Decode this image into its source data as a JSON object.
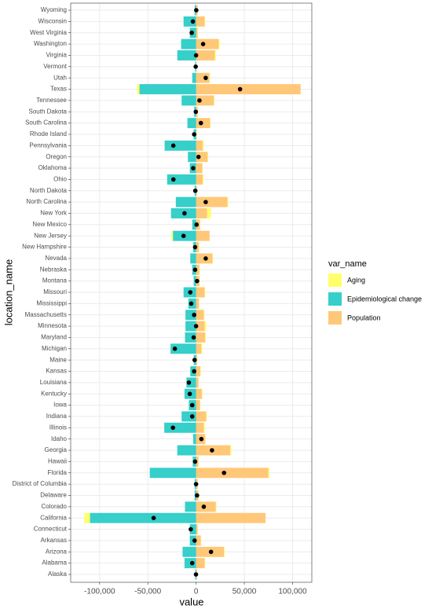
{
  "chart_data": {
    "type": "bar",
    "orientation": "horizontal",
    "stacked": true,
    "x_label": "value",
    "y_label": "location_name",
    "legend_title": "var_name",
    "legend_position": "right",
    "grid": true,
    "categories": [
      "Wyoming",
      "Wisconsin",
      "West Virginia",
      "Washington",
      "Virginia",
      "Vermont",
      "Utah",
      "Texas",
      "Tennessee",
      "South Dakota",
      "South Carolina",
      "Rhode Island",
      "Pennsylvania",
      "Oregon",
      "Oklahoma",
      "Ohio",
      "North Dakota",
      "North Carolina",
      "New York",
      "New Mexico",
      "New Jersey",
      "New Hampshire",
      "Nevada",
      "Nebraska",
      "Montana",
      "Missouri",
      "Mississippi",
      "Massachusetts",
      "Minnesota",
      "Maryland",
      "Michigan",
      "Maine",
      "Kansas",
      "Louisiana",
      "Kentucky",
      "Iowa",
      "Indiana",
      "Illinois",
      "Idaho",
      "Georgia",
      "Hawaii",
      "Florida",
      "District of Columbia",
      "Delaware",
      "Colorado",
      "California",
      "Connecticut",
      "Arkansas",
      "Arizona",
      "Alabama",
      "Alaska"
    ],
    "series": [
      {
        "name": "Aging",
        "color": "#ffff6b",
        "values": [
          200,
          500,
          500,
          800,
          1000,
          100,
          300,
          -2500,
          500,
          200,
          500,
          200,
          1000,
          500,
          300,
          800,
          100,
          800,
          4000,
          300,
          -1500,
          200,
          500,
          200,
          200,
          500,
          300,
          500,
          1500,
          500,
          800,
          200,
          300,
          300,
          500,
          300,
          500,
          1000,
          300,
          1000,
          200,
          1000,
          100,
          200,
          500,
          -6000,
          300,
          300,
          800,
          500,
          100
        ]
      },
      {
        "name": "Epidemiological change",
        "color": "#36cfc9",
        "values": [
          -1500,
          -13000,
          -6500,
          -15500,
          -19500,
          -1000,
          -4000,
          -58700,
          -15000,
          -2000,
          -9000,
          -2500,
          -32600,
          -8500,
          -6500,
          -30000,
          -1500,
          -21000,
          -26000,
          -4000,
          -24000,
          -3000,
          -6000,
          -4000,
          -2500,
          -13000,
          -8000,
          -11000,
          -11000,
          -11500,
          -26500,
          -2500,
          -6000,
          -10000,
          -12000,
          -7500,
          -15000,
          -33000,
          -3000,
          -19500,
          -3500,
          -48000,
          -1500,
          -1500,
          -11500,
          -110000,
          -6500,
          -6500,
          -14000,
          -12000,
          -1000
        ]
      },
      {
        "name": "Population",
        "color": "#ffc878",
        "values": [
          1500,
          9000,
          1500,
          23500,
          19500,
          500,
          14000,
          108400,
          18500,
          1500,
          14500,
          500,
          7000,
          12000,
          6500,
          7000,
          700,
          32500,
          11500,
          4000,
          14000,
          3000,
          17000,
          3500,
          3500,
          9000,
          3000,
          8000,
          9000,
          9500,
          5500,
          1000,
          4500,
          2500,
          6000,
          4000,
          10500,
          8000,
          9500,
          35500,
          2500,
          75000,
          1500,
          2500,
          20500,
          72000,
          1500,
          5000,
          29000,
          9000,
          1000
        ]
      }
    ],
    "points": {
      "color": "#000000",
      "values": [
        200,
        -3300,
        -4500,
        7300,
        0,
        -400,
        10000,
        45600,
        3500,
        -300,
        5000,
        -2000,
        -23600,
        2500,
        -3000,
        -23500,
        -800,
        10000,
        -12000,
        500,
        -13000,
        -1000,
        10000,
        -1000,
        1000,
        -6000,
        -5000,
        -2000,
        0,
        -2500,
        -22000,
        -1500,
        -2000,
        -7500,
        -6500,
        -4000,
        -4000,
        -24000,
        5500,
        16500,
        -1000,
        29000,
        0,
        1000,
        8000,
        -44000,
        -5500,
        -1500,
        15500,
        -4000,
        -100
      ]
    },
    "xlim": [
      -130000,
      120000
    ],
    "xticks": [
      {
        "value": -100000,
        "label": "-100,000"
      },
      {
        "value": -50000,
        "label": "-50,000"
      },
      0,
      {
        "value": 50000,
        "label": "50,000"
      },
      {
        "value": 100000,
        "label": "100,000"
      }
    ]
  }
}
